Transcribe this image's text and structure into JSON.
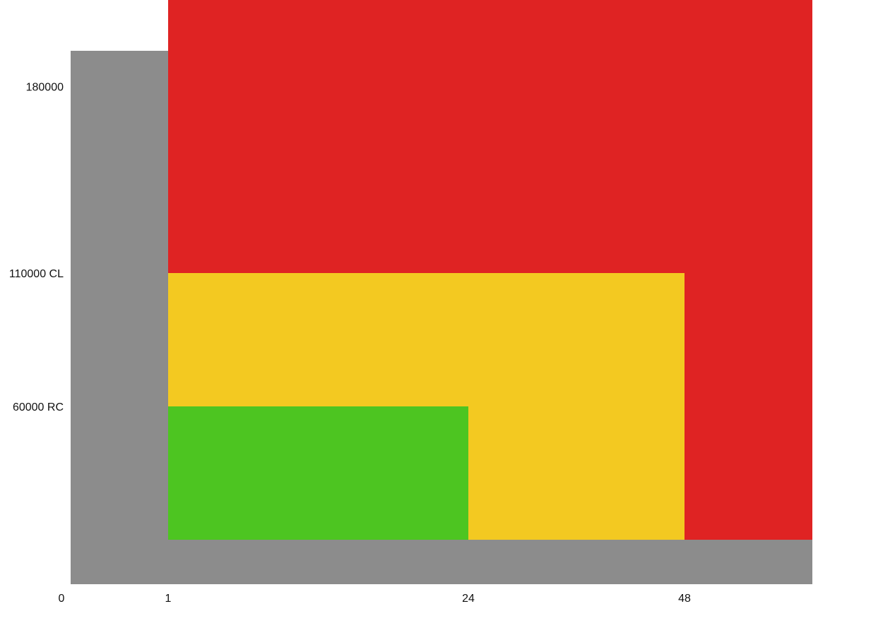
{
  "colors": {
    "background": "#8c8c8c",
    "red": "#df2323",
    "yellow": "#f3c921",
    "green": "#4dc521",
    "text": "#111111"
  },
  "chart_data": {
    "type": "area",
    "title": "",
    "xlabel": "",
    "ylabel": "",
    "legend": "none",
    "grid": false,
    "x_ticks": [
      {
        "value": 0,
        "label": "0"
      },
      {
        "value": 1,
        "label": "1"
      },
      {
        "value": 24,
        "label": "24"
      },
      {
        "value": 48,
        "label": "48"
      }
    ],
    "y_ticks": [
      {
        "value": 60000,
        "label": "60000 RC"
      },
      {
        "value": 110000,
        "label": "110000 CL"
      },
      {
        "value": 180000,
        "label": "180000"
      }
    ],
    "zones": [
      {
        "color": "red",
        "x_from": 1,
        "x_to": 62.2,
        "y_from": 10000,
        "y_to": 220000
      },
      {
        "color": "yellow",
        "x_from": 1,
        "x_to": 48,
        "y_from": 10000,
        "y_to": 110000
      },
      {
        "color": "green",
        "x_from": 1,
        "x_to": 24,
        "y_from": 10000,
        "y_to": 60000
      }
    ],
    "xlim": [
      0,
      62.2
    ],
    "ylim": [
      -6800,
      220000
    ]
  }
}
